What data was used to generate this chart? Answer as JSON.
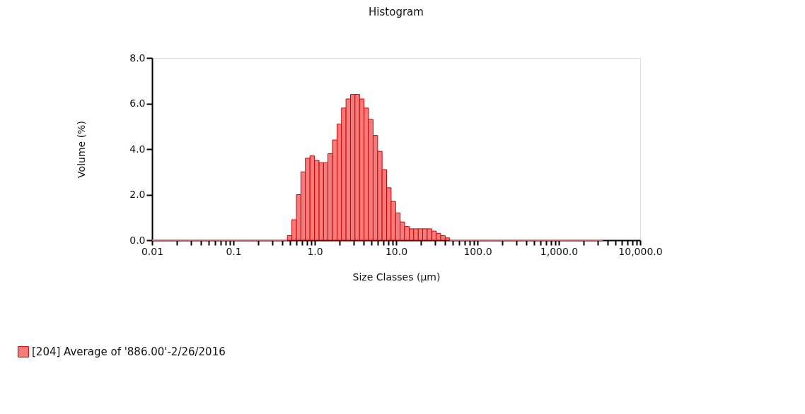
{
  "chart_data": {
    "type": "histogram",
    "title": "Histogram",
    "xlabel": "Size Classes (µm)",
    "ylabel": "Volume (%)",
    "bins": [
      0.01,
      0.0114,
      0.0129,
      0.0147,
      0.0167,
      0.0189,
      0.0215,
      0.0244,
      0.0278,
      0.0315,
      0.0358,
      0.0407,
      0.0463,
      0.0526,
      0.0597,
      0.0679,
      0.0771,
      0.0876,
      0.0995,
      0.113,
      0.128,
      0.146,
      0.166,
      0.188,
      0.214,
      0.243,
      0.276,
      0.314,
      0.357,
      0.405,
      0.46,
      0.523,
      0.594,
      0.675,
      0.767,
      0.872,
      0.991,
      1.13,
      1.28,
      1.45,
      1.65,
      1.88,
      2.13,
      2.42,
      2.75,
      3.12,
      3.55,
      4.03,
      4.58,
      5.21,
      5.92,
      6.72,
      7.64,
      8.68,
      9.86,
      11.2,
      12.7,
      14.5,
      16.4,
      18.7,
      21.2,
      24.1,
      27.4,
      31.1,
      35.3,
      40.1,
      45.6,
      51.8,
      58.9,
      66.9,
      76,
      86.4,
      98.1,
      111,
      127,
      144,
      163,
      186,
      211,
      240,
      272,
      310,
      352,
      400,
      454,
      516,
      586,
      666,
      756,
      859,
      976,
      1110,
      1260,
      1430,
      1630,
      1850,
      2100,
      2390,
      2710,
      3080,
      3500
    ],
    "series": [
      {
        "name": "[204] Average of '886.00'-2/26/2016",
        "color": "#f47c7c",
        "values": [
          0,
          0,
          0,
          0,
          0,
          0,
          0,
          0,
          0,
          0,
          0,
          0,
          0,
          0,
          0,
          0,
          0,
          0,
          0,
          0,
          0,
          0,
          0,
          0,
          0,
          0,
          0,
          0,
          0,
          0,
          0.2,
          0.9,
          2.0,
          3.0,
          3.6,
          3.7,
          3.5,
          3.4,
          3.4,
          3.8,
          4.4,
          5.1,
          5.8,
          6.2,
          6.4,
          6.4,
          6.2,
          5.8,
          5.3,
          4.6,
          3.9,
          3.1,
          2.3,
          1.7,
          1.2,
          0.8,
          0.6,
          0.5,
          0.5,
          0.5,
          0.5,
          0.5,
          0.4,
          0.3,
          0.2,
          0.1,
          0,
          0,
          0,
          0,
          0,
          0,
          0,
          0,
          0,
          0,
          0,
          0,
          0,
          0,
          0,
          0,
          0,
          0,
          0,
          0,
          0,
          0,
          0,
          0,
          0,
          0,
          0,
          0,
          0,
          0,
          0,
          0,
          0,
          0
        ]
      }
    ],
    "log": "x",
    "xlim": [
      0.01,
      10000
    ],
    "ylim": [
      0,
      8
    ],
    "xticks": [
      {
        "value": 0.01,
        "label": "0.01"
      },
      {
        "value": 0.02,
        "label": null
      },
      {
        "value": 0.03,
        "label": null
      },
      {
        "value": 0.04,
        "label": null
      },
      {
        "value": 0.05,
        "label": null
      },
      {
        "value": 0.06,
        "label": null
      },
      {
        "value": 0.07,
        "label": null
      },
      {
        "value": 0.08,
        "label": null
      },
      {
        "value": 0.09,
        "label": null
      },
      {
        "value": 0.1,
        "label": "0.1"
      },
      {
        "value": 0.2,
        "label": null
      },
      {
        "value": 0.3,
        "label": null
      },
      {
        "value": 0.4,
        "label": null
      },
      {
        "value": 0.5,
        "label": null
      },
      {
        "value": 0.6,
        "label": null
      },
      {
        "value": 0.7,
        "label": null
      },
      {
        "value": 0.8,
        "label": null
      },
      {
        "value": 0.9,
        "label": null
      },
      {
        "value": 1,
        "label": "1.0"
      },
      {
        "value": 2,
        "label": null
      },
      {
        "value": 3,
        "label": null
      },
      {
        "value": 4,
        "label": null
      },
      {
        "value": 5,
        "label": null
      },
      {
        "value": 6,
        "label": null
      },
      {
        "value": 7,
        "label": null
      },
      {
        "value": 8,
        "label": null
      },
      {
        "value": 9,
        "label": null
      },
      {
        "value": 10,
        "label": "10.0"
      },
      {
        "value": 20,
        "label": null
      },
      {
        "value": 30,
        "label": null
      },
      {
        "value": 40,
        "label": null
      },
      {
        "value": 50,
        "label": null
      },
      {
        "value": 60,
        "label": null
      },
      {
        "value": 70,
        "label": null
      },
      {
        "value": 80,
        "label": null
      },
      {
        "value": 90,
        "label": null
      },
      {
        "value": 100,
        "label": "100.0"
      },
      {
        "value": 200,
        "label": null
      },
      {
        "value": 300,
        "label": null
      },
      {
        "value": 400,
        "label": null
      },
      {
        "value": 500,
        "label": null
      },
      {
        "value": 600,
        "label": null
      },
      {
        "value": 700,
        "label": null
      },
      {
        "value": 800,
        "label": null
      },
      {
        "value": 900,
        "label": null
      },
      {
        "value": 1000,
        "label": "1,000.0"
      },
      {
        "value": 2000,
        "label": null
      },
      {
        "value": 3000,
        "label": null
      },
      {
        "value": 4000,
        "label": null
      },
      {
        "value": 5000,
        "label": null
      },
      {
        "value": 6000,
        "label": null
      },
      {
        "value": 7000,
        "label": null
      },
      {
        "value": 8000,
        "label": null
      },
      {
        "value": 9000,
        "label": null
      },
      {
        "value": 10000,
        "label": "10,000.0"
      }
    ],
    "yticks": [
      {
        "value": 0,
        "label": "0.0"
      },
      {
        "value": 2,
        "label": "2.0"
      },
      {
        "value": 4,
        "label": "4.0"
      },
      {
        "value": 6,
        "label": "6.0"
      },
      {
        "value": 8,
        "label": "8.0"
      }
    ],
    "grid": false,
    "legend": "bottom left"
  }
}
